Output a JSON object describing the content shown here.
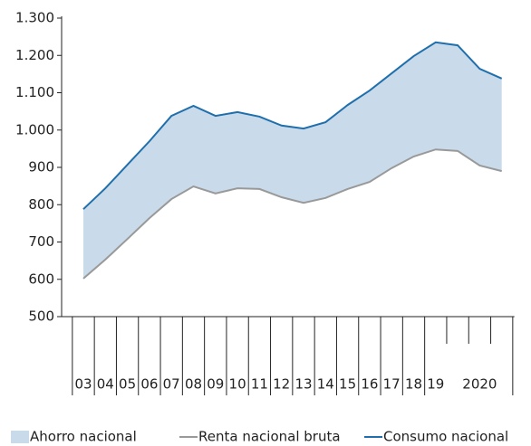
{
  "chart_data": {
    "type": "area-line",
    "categories": [
      "03",
      "04",
      "05",
      "06",
      "07",
      "08",
      "09",
      "10",
      "11",
      "12",
      "13",
      "14",
      "15",
      "16",
      "17",
      "18",
      "19",
      null,
      "2020",
      null
    ],
    "series": [
      {
        "name": "Ahorro nacional",
        "color": "#c9daea",
        "values": [
          186,
          191,
          199,
          206,
          223,
          216,
          208,
          204,
          194,
          192,
          199,
          203,
          225,
          245,
          254,
          269,
          287,
          283,
          259,
          248
        ]
      },
      {
        "name": "Renta nacional bruta",
        "color": "#999999",
        "values": [
          602,
          653,
          708,
          764,
          815,
          849,
          830,
          844,
          842,
          820,
          805,
          818,
          842,
          861,
          898,
          929,
          948,
          944,
          905,
          890
        ]
      },
      {
        "name": "Consumo nacional",
        "color": "#1f6fad",
        "values": [
          788,
          844,
          907,
          970,
          1038,
          1065,
          1038,
          1048,
          1036,
          1012,
          1004,
          1021,
          1067,
          1106,
          1152,
          1198,
          1235,
          1227,
          1164,
          1138
        ]
      }
    ],
    "ylim": [
      500,
      1300
    ],
    "yticks": [
      500,
      600,
      700,
      800,
      900,
      {
        "value": 1000,
        "label": "1.000"
      },
      {
        "value": 1100,
        "label": "1.100"
      },
      {
        "value": 1200,
        "label": "1.200"
      },
      {
        "value": 1300,
        "label": "1.300"
      }
    ],
    "legend": "bottom"
  }
}
